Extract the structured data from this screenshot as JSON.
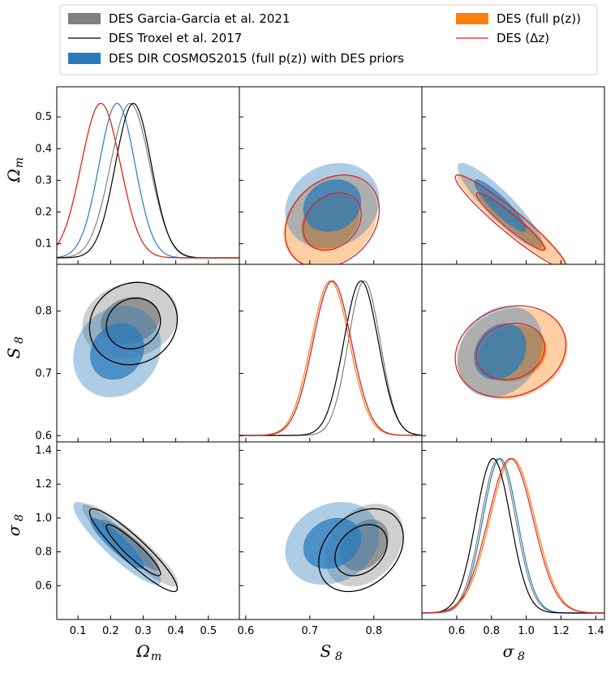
{
  "colors": {
    "garcia": "#808080",
    "troxel": "#000000",
    "dir": "#2b7bba",
    "full": "#ff7f0e",
    "dz": "#d62728"
  },
  "chart_data": {
    "type": "corner",
    "parameters": [
      {
        "key": "Omega_m",
        "label": "Ω",
        "sub": "m",
        "ticks": [
          "0.1",
          "0.2",
          "0.3",
          "0.4",
          "0.5"
        ],
        "range": [
          0.035,
          0.595
        ]
      },
      {
        "key": "S8",
        "label": "S",
        "sub": "8",
        "ticks": [
          "0.6",
          "0.7",
          "0.8"
        ],
        "range": [
          0.59,
          0.875
        ]
      },
      {
        "key": "sigma8",
        "label": "σ",
        "sub": "8",
        "ticks": [
          "0.6",
          "0.8",
          "1.0",
          "1.2",
          "1.4"
        ],
        "range": [
          0.4,
          1.45
        ]
      }
    ],
    "row_ticks": {
      "Omega_m": [
        "0.1",
        "0.2",
        "0.3",
        "0.4",
        "0.5"
      ],
      "S8": [
        "0.6",
        "0.7",
        "0.8"
      ],
      "sigma8": [
        "0.6",
        "0.8",
        "1.0",
        "1.2",
        "1.4"
      ]
    },
    "legend": [
      {
        "label": "DES Garcia-Garcia et al. 2021",
        "style": "filled",
        "series": "garcia"
      },
      {
        "label": "DES Troxel et al. 2017",
        "style": "line",
        "series": "troxel"
      },
      {
        "label": "DES DIR COSMOS2015 (full p(z)) with DES priors",
        "style": "filled",
        "series": "dir"
      },
      {
        "label": "DES (full p(z))",
        "style": "filled",
        "series": "full"
      },
      {
        "label": "DES (Δz)",
        "style": "line",
        "series": "dz"
      }
    ],
    "series": {
      "garcia": {
        "Omega_m": [
          0.26,
          0.06
        ],
        "S8": [
          0.785,
          0.025
        ],
        "sigma8": [
          0.84,
          0.1
        ],
        "rho": {
          "om_s8": 0.15,
          "om_sig": -0.92,
          "s8_sig": 0.3
        }
      },
      "troxel": {
        "Omega_m": [
          0.27,
          0.055
        ],
        "S8": [
          0.78,
          0.027
        ],
        "sigma8": [
          0.81,
          0.1
        ],
        "rho": {
          "om_s8": 0.1,
          "om_sig": -0.92,
          "s8_sig": 0.3
        }
      },
      "dir": {
        "Omega_m": [
          0.22,
          0.055
        ],
        "S8": [
          0.735,
          0.03
        ],
        "sigma8": [
          0.85,
          0.1
        ],
        "rho": {
          "om_s8": 0.15,
          "om_sig": -0.9,
          "s8_sig": 0.2
        }
      },
      "full": {
        "Omega_m": [
          0.17,
          0.06
        ],
        "S8": [
          0.732,
          0.03
        ],
        "sigma8": [
          0.92,
          0.13
        ],
        "rho": {
          "om_s8": 0.25,
          "om_sig": -0.95,
          "s8_sig": 0.15
        }
      },
      "dz": {
        "Omega_m": [
          0.17,
          0.06
        ],
        "S8": [
          0.735,
          0.03
        ],
        "sigma8": [
          0.91,
          0.13
        ],
        "rho": {
          "om_s8": 0.25,
          "om_sig": -0.95,
          "s8_sig": 0.15
        }
      }
    }
  }
}
